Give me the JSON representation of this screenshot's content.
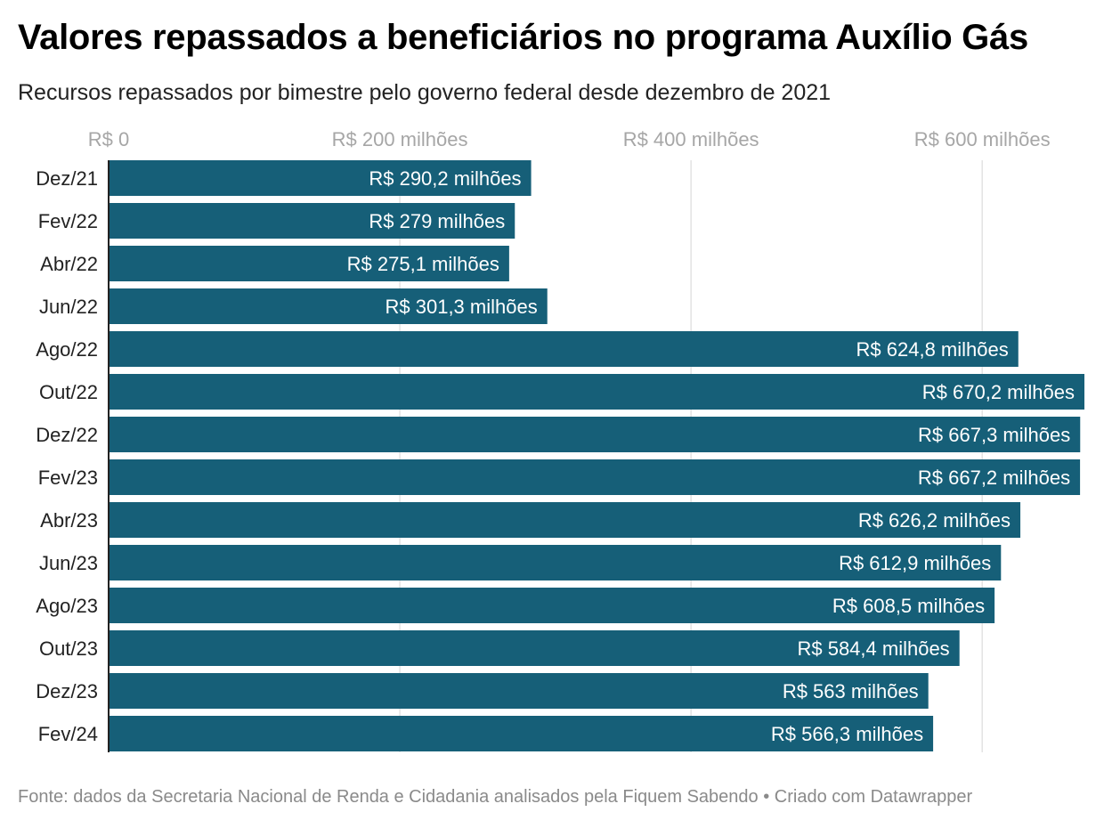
{
  "title": "Valores repassados a beneficiários no programa Auxílio Gás",
  "subtitle": "Recursos repassados por bimestre pelo governo federal desde dezembro de 2021",
  "footer": {
    "source": "Fonte: dados da Secretaria Nacional de Renda e Cidadania analisados pela Fiquem Sabendo",
    "separator": " • ",
    "credit": "Criado com Datawrapper"
  },
  "colors": {
    "bar": "#165f78",
    "grid": "#e3e3e3",
    "axis": "#222222",
    "tick_text": "#a6a6a6",
    "value_text": "#ffffff"
  },
  "chart_data": {
    "type": "bar",
    "orientation": "horizontal",
    "categories": [
      "Dez/21",
      "Fev/22",
      "Abr/22",
      "Jun/22",
      "Ago/22",
      "Out/22",
      "Dez/22",
      "Fev/23",
      "Abr/23",
      "Jun/23",
      "Ago/23",
      "Out/23",
      "Dez/23",
      "Fev/24"
    ],
    "values": [
      290.2,
      279,
      275.1,
      301.3,
      624.8,
      670.2,
      667.3,
      667.2,
      626.2,
      612.9,
      608.5,
      584.4,
      563,
      566.3
    ],
    "value_labels": [
      "R$ 290,2 milhões",
      "R$ 279 milhões",
      "R$ 275,1 milhões",
      "R$ 301,3 milhões",
      "R$ 624,8 milhões",
      "R$ 670,2 milhões",
      "R$ 667,3 milhões",
      "R$ 667,2 milhões",
      "R$ 626,2 milhões",
      "R$ 612,9 milhões",
      "R$ 608,5 milhões",
      "R$ 584,4 milhões",
      "R$ 563 milhões",
      "R$ 566,3 milhões"
    ],
    "x_ticks": [
      0,
      200,
      400,
      600
    ],
    "x_tick_labels": [
      "R$ 0",
      "R$ 200 milhões",
      "R$ 400 milhões",
      "R$ 600 milhões"
    ],
    "xlim": [
      0,
      670.2
    ],
    "grid": true,
    "legend": "none"
  }
}
